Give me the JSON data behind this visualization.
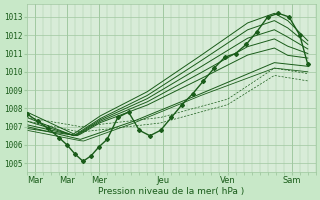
{
  "xlabel": "Pression niveau de la mer( hPa )",
  "bg_color": "#c8e8c8",
  "plot_bg_color": "#d8ecd8",
  "grid_color": "#a0c8a0",
  "line_color": "#1a5c1a",
  "marker_color": "#1a5c1a",
  "yticks": [
    1005,
    1006,
    1007,
    1008,
    1009,
    1010,
    1011,
    1012,
    1013
  ],
  "ylim": [
    1004.5,
    1013.7
  ],
  "xlim": [
    0,
    216
  ],
  "xtick_labels": [
    "Mar",
    "Mar",
    "Mer",
    "Jeu",
    "Ven",
    "Sam"
  ],
  "xtick_positions": [
    6,
    30,
    54,
    102,
    150,
    198
  ],
  "vlines": [
    6,
    30,
    54,
    102,
    150,
    198
  ],
  "n_points": 85
}
